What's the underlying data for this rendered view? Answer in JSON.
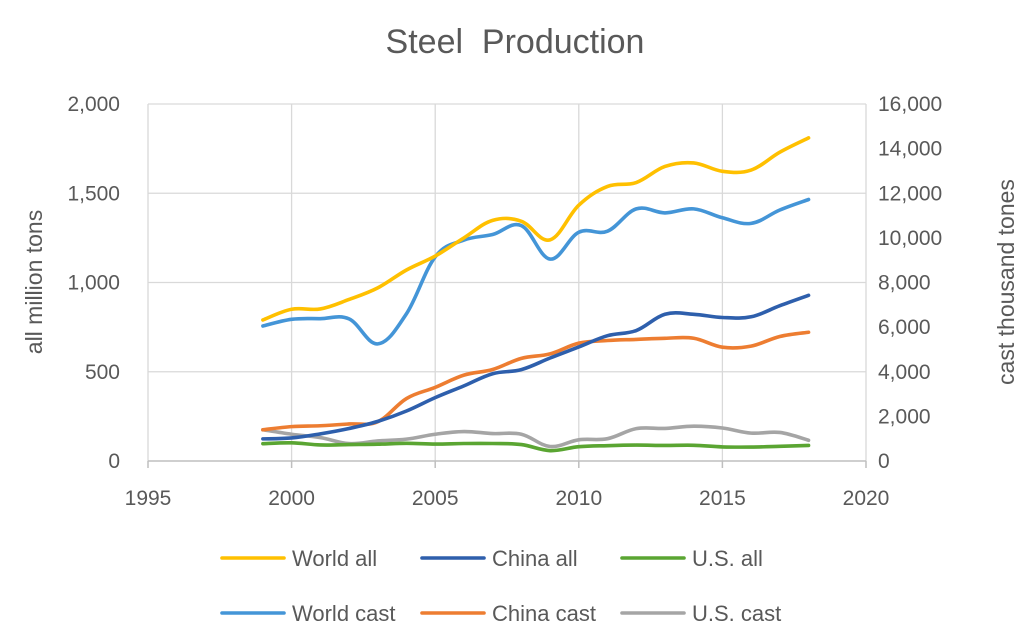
{
  "chart_data": {
    "type": "line",
    "title": "Steel  Production",
    "xlabel": "",
    "ylabel": "all million tons",
    "y2label": "cast thousand tones",
    "xlim": [
      1995,
      2020
    ],
    "ylim": [
      0,
      2000
    ],
    "y2lim": [
      0,
      16000
    ],
    "x_ticks": [
      "1995",
      "2000",
      "2005",
      "2010",
      "2015",
      "2020"
    ],
    "y_ticks": [
      "0",
      "500",
      "1,000",
      "1,500",
      "2,000"
    ],
    "y2_ticks": [
      "0",
      "2,000",
      "4,000",
      "6,000",
      "8,000",
      "10,000",
      "12,000",
      "14,000",
      "16,000"
    ],
    "grid": true,
    "legend_position": "bottom",
    "x": [
      1999,
      2000,
      2001,
      2002,
      2003,
      2004,
      2005,
      2006,
      2007,
      2008,
      2009,
      2010,
      2011,
      2012,
      2013,
      2014,
      2015,
      2016,
      2017,
      2018
    ],
    "series": [
      {
        "name": "World all",
        "axis": "left",
        "color": "#FFC000",
        "values": [
          790,
          850,
          852,
          905,
          970,
          1070,
          1148,
          1250,
          1348,
          1343,
          1239,
          1433,
          1538,
          1560,
          1650,
          1670,
          1623,
          1630,
          1730,
          1810
        ]
      },
      {
        "name": "China all",
        "axis": "left",
        "color": "#2E5FAC",
        "values": [
          124,
          129,
          152,
          182,
          222,
          280,
          355,
          421,
          489,
          512,
          577,
          639,
          702,
          731,
          822,
          822,
          804,
          808,
          870,
          928
        ]
      },
      {
        "name": "U.S. all",
        "axis": "left",
        "color": "#5AA532",
        "values": [
          97,
          102,
          90,
          92,
          94,
          99,
          95,
          98,
          98,
          92,
          58,
          80,
          86,
          89,
          87,
          88,
          79,
          78,
          82,
          87
        ]
      },
      {
        "name": "World cast",
        "axis": "right",
        "color": "#4495D7",
        "values": [
          6050,
          6350,
          6380,
          6370,
          5250,
          6600,
          9150,
          9900,
          10150,
          10550,
          9050,
          10250,
          10300,
          11300,
          11120,
          11300,
          10900,
          10650,
          11250,
          11720
        ]
      },
      {
        "name": "China cast",
        "axis": "right",
        "color": "#ED7D31",
        "values": [
          1400,
          1540,
          1580,
          1660,
          1760,
          2800,
          3300,
          3850,
          4100,
          4600,
          4800,
          5280,
          5400,
          5450,
          5500,
          5500,
          5100,
          5150,
          5580,
          5770
        ]
      },
      {
        "name": "U.S. cast",
        "axis": "right",
        "color": "#A5A5A5",
        "values": [
          1400,
          1200,
          1050,
          780,
          900,
          980,
          1200,
          1320,
          1230,
          1200,
          650,
          950,
          1000,
          1450,
          1460,
          1560,
          1480,
          1250,
          1280,
          930
        ]
      }
    ]
  }
}
